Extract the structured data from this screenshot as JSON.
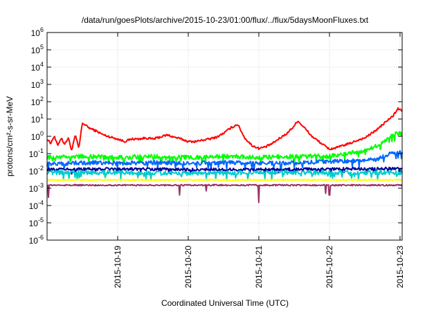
{
  "chart_data": {
    "type": "line",
    "title": "/data/run/goesPlots/archive/2015-10-23/01:00/flux/../flux/5daysMoonFluxes.txt",
    "xlabel": "Coordinated Universal Time (UTC)",
    "ylabel": "protons/cm²-s-sr-MeV",
    "y_scale": "log",
    "ylim": [
      "1e-6",
      "1e6"
    ],
    "xlim": [
      0,
      5.03
    ],
    "x_unit": "days from 2015-10-18 00:00 UTC",
    "x_ticks": [
      {
        "x": 1,
        "label": "2015-10-19"
      },
      {
        "x": 2,
        "label": "2015-10-20"
      },
      {
        "x": 3,
        "label": "2015-10-21"
      },
      {
        "x": 4,
        "label": "2015-10-22"
      },
      {
        "x": 5,
        "label": "2015-10-23"
      }
    ],
    "y_ticks": [
      {
        "exp": -6,
        "label": "10-6"
      },
      {
        "exp": -5,
        "label": "10-5"
      },
      {
        "exp": -4,
        "label": "10-4"
      },
      {
        "exp": -3,
        "label": "10-3"
      },
      {
        "exp": -2,
        "label": "10-2"
      },
      {
        "exp": -1,
        "label": "10-1"
      },
      {
        "exp": 0,
        "label": "100"
      },
      {
        "exp": 1,
        "label": "101"
      },
      {
        "exp": 2,
        "label": "102"
      },
      {
        "exp": 3,
        "label": "103"
      },
      {
        "exp": 4,
        "label": "104"
      },
      {
        "exp": 5,
        "label": "105"
      },
      {
        "exp": 6,
        "label": "106"
      }
    ],
    "grid": true,
    "series": [
      {
        "color": "#ff0000",
        "wiggle": 0.06,
        "values": [
          [
            0,
            "0.7"
          ],
          [
            0.05,
            "0.4"
          ],
          [
            0.1,
            "1"
          ],
          [
            0.15,
            "0.3"
          ],
          [
            0.2,
            "0.8"
          ],
          [
            0.25,
            "0.35"
          ],
          [
            0.3,
            "0.8"
          ],
          [
            0.35,
            "0.15"
          ],
          [
            0.4,
            "1.2"
          ],
          [
            0.45,
            "0.2"
          ],
          [
            0.5,
            "6"
          ],
          [
            0.6,
            "3"
          ],
          [
            0.7,
            "2"
          ],
          [
            0.8,
            "1.2"
          ],
          [
            0.9,
            "0.9"
          ],
          [
            1.0,
            "0.7"
          ],
          [
            1.1,
            "0.5"
          ],
          [
            1.2,
            "0.7"
          ],
          [
            1.3,
            "0.7"
          ],
          [
            1.4,
            "0.8"
          ],
          [
            1.5,
            "0.7"
          ],
          [
            1.6,
            "0.9"
          ],
          [
            1.7,
            "1.2"
          ],
          [
            1.8,
            "0.9"
          ],
          [
            1.9,
            "0.7"
          ],
          [
            2.0,
            "0.5"
          ],
          [
            2.1,
            "0.5"
          ],
          [
            2.2,
            "0.6"
          ],
          [
            2.3,
            "0.7"
          ],
          [
            2.4,
            "0.9"
          ],
          [
            2.5,
            "1.5"
          ],
          [
            2.6,
            "3"
          ],
          [
            2.7,
            "5"
          ],
          [
            2.8,
            "0.8"
          ],
          [
            2.9,
            "0.3"
          ],
          [
            3.0,
            "0.2"
          ],
          [
            3.1,
            "0.25"
          ],
          [
            3.2,
            "0.4"
          ],
          [
            3.3,
            "0.8"
          ],
          [
            3.4,
            "1.5"
          ],
          [
            3.5,
            "4"
          ],
          [
            3.55,
            "8"
          ],
          [
            3.65,
            "3"
          ],
          [
            3.75,
            "1"
          ],
          [
            3.85,
            "0.5"
          ],
          [
            3.95,
            "0.25"
          ],
          [
            4.0,
            "0.18"
          ],
          [
            4.1,
            "0.22"
          ],
          [
            4.2,
            "0.3"
          ],
          [
            4.3,
            "0.4"
          ],
          [
            4.4,
            "0.6"
          ],
          [
            4.5,
            "0.8"
          ],
          [
            4.6,
            "1.5"
          ],
          [
            4.7,
            "3"
          ],
          [
            4.8,
            "7"
          ],
          [
            4.9,
            "15"
          ],
          [
            4.97,
            "40"
          ],
          [
            5.03,
            "30"
          ]
        ]
      },
      {
        "color": "#00ff00",
        "wiggle": 0.12,
        "values": [
          [
            0,
            "0.06"
          ],
          [
            0.5,
            "0.07"
          ],
          [
            1.0,
            "0.06"
          ],
          [
            1.5,
            "0.07"
          ],
          [
            2.0,
            "0.06"
          ],
          [
            2.5,
            "0.07"
          ],
          [
            3.0,
            "0.06"
          ],
          [
            3.5,
            "0.07"
          ],
          [
            4.0,
            "0.07"
          ],
          [
            4.5,
            "0.15"
          ],
          [
            4.7,
            "0.3"
          ],
          [
            4.9,
            "1.2"
          ],
          [
            4.97,
            "1.5"
          ],
          [
            5.03,
            "1.3"
          ]
        ]
      },
      {
        "color": "#0066ff",
        "wiggle": 0.12,
        "values": [
          [
            0,
            "0.025"
          ],
          [
            0.5,
            "0.03"
          ],
          [
            1.0,
            "0.028"
          ],
          [
            1.5,
            "0.03"
          ],
          [
            2.0,
            "0.028"
          ],
          [
            2.5,
            "0.03"
          ],
          [
            3.0,
            "0.028"
          ],
          [
            3.5,
            "0.03"
          ],
          [
            4.0,
            "0.035"
          ],
          [
            4.5,
            "0.04"
          ],
          [
            4.7,
            "0.05"
          ],
          [
            4.9,
            "0.12"
          ],
          [
            5.03,
            "0.12"
          ]
        ]
      },
      {
        "color": "#000099",
        "wiggle": 0.08,
        "values": [
          [
            0,
            "0.012"
          ],
          [
            1.0,
            "0.013"
          ],
          [
            2.0,
            "0.012"
          ],
          [
            3.0,
            "0.012"
          ],
          [
            4.0,
            "0.013"
          ],
          [
            5.03,
            "0.014"
          ]
        ]
      },
      {
        "color": "#00cccc",
        "wiggle": 0.12,
        "values": [
          [
            0,
            "0.008"
          ],
          [
            1.0,
            "0.008"
          ],
          [
            2.0,
            "0.007"
          ],
          [
            3.0,
            "0.008"
          ],
          [
            4.0,
            "0.008"
          ],
          [
            5.03,
            "0.008"
          ]
        ]
      },
      {
        "color": "#ffff00",
        "wiggle": 0.04,
        "values": [
          [
            0,
            "0.003"
          ],
          [
            1.0,
            "0.003"
          ],
          [
            2.0,
            "0.003"
          ],
          [
            3.0,
            "0.003"
          ],
          [
            4.0,
            "0.003"
          ],
          [
            5.03,
            "0.003"
          ]
        ]
      },
      {
        "color": "#993366",
        "wiggle": 0.04,
        "dips": [
          [
            0.02,
            "0.0003"
          ],
          [
            1.88,
            "0.0004"
          ],
          [
            2.25,
            "0.0007"
          ],
          [
            3.0,
            "0.00015"
          ],
          [
            3.95,
            "0.0005"
          ],
          [
            4.0,
            "0.0004"
          ]
        ],
        "values": [
          [
            0,
            "0.0015"
          ],
          [
            1.0,
            "0.0015"
          ],
          [
            2.0,
            "0.0015"
          ],
          [
            3.0,
            "0.0015"
          ],
          [
            4.0,
            "0.0015"
          ],
          [
            5.03,
            "0.0015"
          ]
        ]
      }
    ]
  }
}
